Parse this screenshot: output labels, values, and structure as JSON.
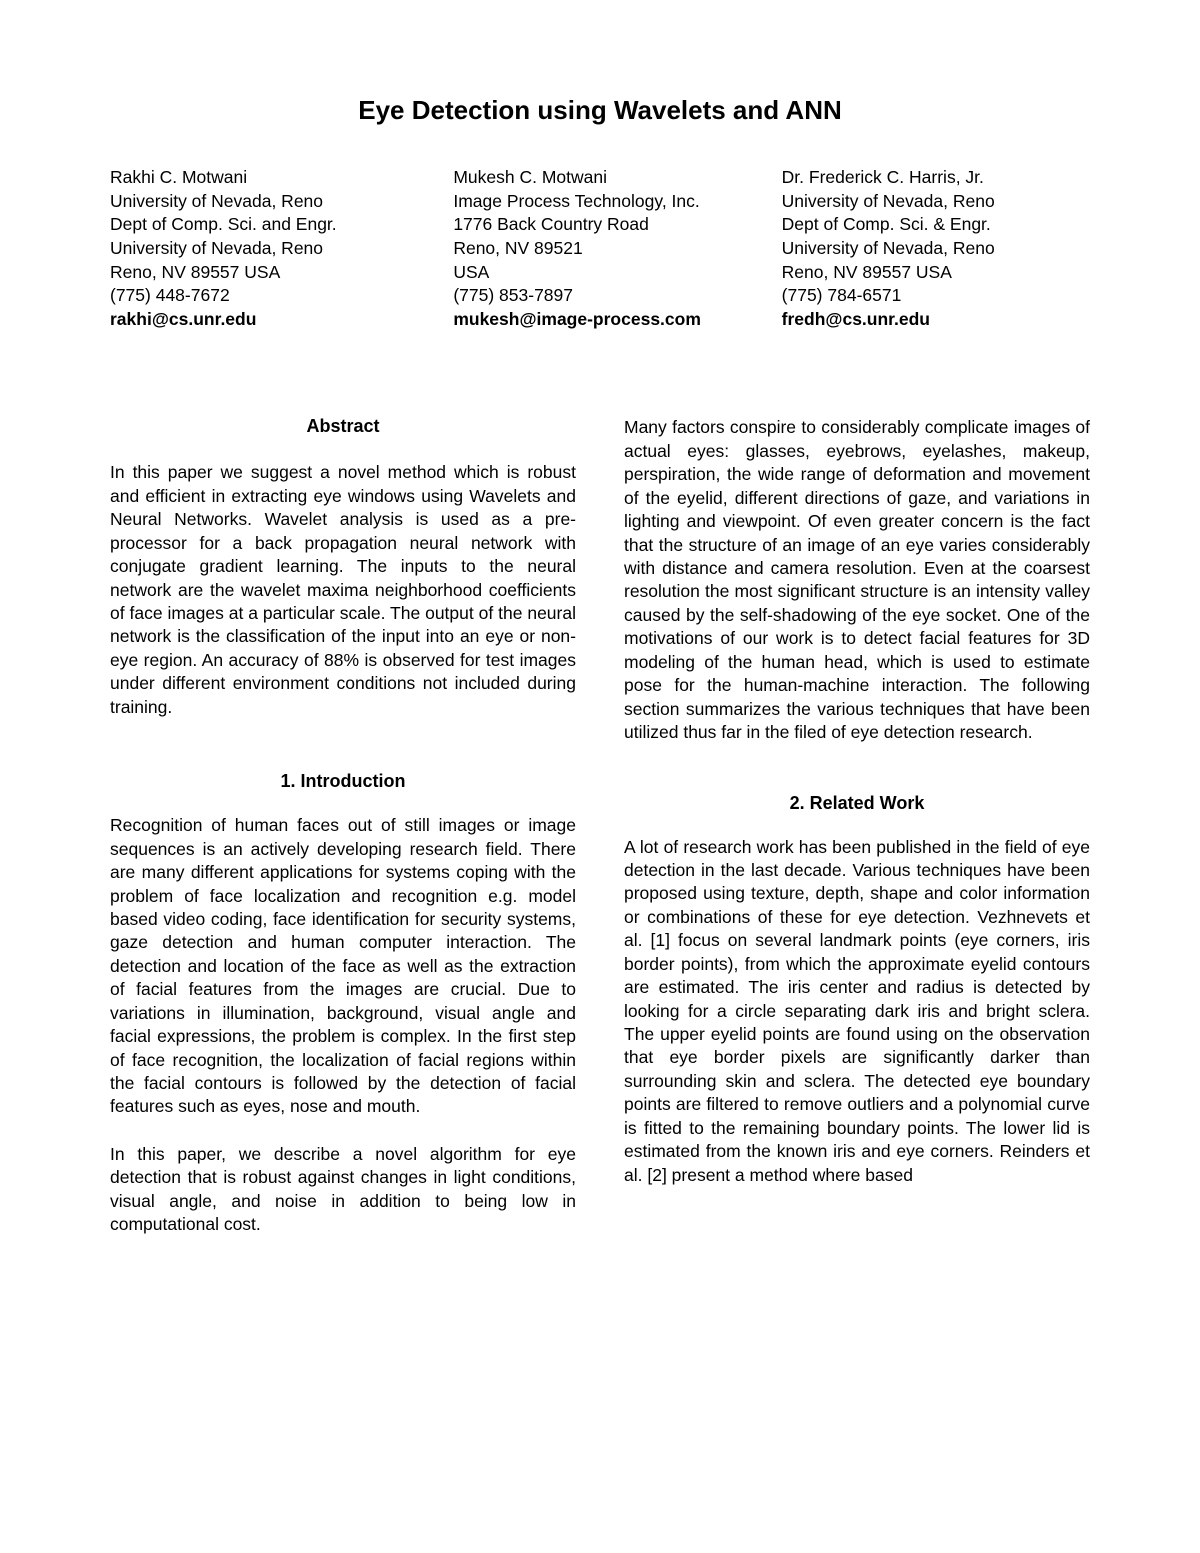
{
  "title": "Eye Detection using Wavelets and ANN",
  "authors": [
    {
      "name": "Rakhi C. Motwani",
      "line1": "University of Nevada, Reno",
      "line2": "Dept of Comp. Sci. and Engr.",
      "line3": "University of Nevada, Reno",
      "line4": "Reno, NV 89557 USA",
      "phone": "(775) 448-7672",
      "email": "rakhi@cs.unr.edu"
    },
    {
      "name": "Mukesh C. Motwani",
      "line1": "Image Process Technology, Inc.",
      "line2": "1776 Back Country Road",
      "line3": "Reno, NV 89521",
      "line4": "USA",
      "phone": "(775) 853-7897",
      "email": "mukesh@image-process.com"
    },
    {
      "name": "Dr. Frederick C. Harris, Jr.",
      "line1": "University of Nevada, Reno",
      "line2": "Dept of Comp. Sci. & Engr.",
      "line3": "University of Nevada, Reno",
      "line4": "Reno, NV 89557 USA",
      "phone": "(775) 784-6571",
      "email": "fredh@cs.unr.edu"
    }
  ],
  "headings": {
    "abstract": "Abstract",
    "introduction": "1. Introduction",
    "related": "2. Related Work"
  },
  "paragraphs": {
    "abstract": "In this paper we suggest a novel method which is robust and efficient in extracting eye windows using Wavelets and Neural Networks. Wavelet analysis is used as a pre-processor for a back propagation neural network with conjugate gradient learning. The inputs to the neural network are the wavelet maxima neighborhood coefficients of face images at a particular scale. The output of the neural network is the classification of the input into an eye or non-eye region. An accuracy of 88% is observed for test images under different environment conditions not included during training.",
    "intro_p1": "Recognition of human faces out of still images or image sequences is an actively developing research field. There are many different applications for systems coping with the problem of face localization and recognition e.g. model based video coding, face identification for security systems, gaze detection and human computer interaction. The detection and location of the face as well as the extraction of facial features from the images are crucial. Due to variations in illumination, background, visual angle and facial expressions, the problem is complex. In the first step of face recognition, the localization of facial regions within the facial contours is followed by the detection of facial features such as eyes, nose and mouth.",
    "intro_p2": "In this paper, we describe a novel algorithm for eye detection that is robust against changes in light conditions, visual angle, and noise in addition to being low in computational cost.",
    "col2_p1": "Many factors conspire to considerably complicate images of actual eyes: glasses, eyebrows, eyelashes, makeup, perspiration, the wide range of deformation and movement of the eyelid, different directions of gaze, and variations in lighting and viewpoint. Of even greater concern is the fact that the structure of an image of an eye varies considerably with distance and camera resolution. Even at the coarsest resolution the most significant structure is an intensity valley caused by the self-shadowing of the eye socket. One of the motivations of our work is to detect facial features for 3D modeling of the human head, which is used to estimate pose for the human-machine interaction. The following section summarizes the various techniques that have been utilized thus far in the filed of eye detection research.",
    "related_p1": "A lot of research work has been published in the field of eye detection in the last decade. Various techniques have been proposed using texture, depth, shape and color information or combinations of these for eye detection. Vezhnevets et al. [1] focus on several landmark points (eye corners, iris border points), from which the approximate eyelid contours are estimated. The iris center and radius is detected by looking for a circle separating dark iris and bright sclera. The upper eyelid points are found using on the observation that eye border pixels are significantly darker than surrounding skin and sclera. The detected eye boundary points are filtered to remove outliers and a polynomial curve is fitted to the remaining boundary points. The lower lid is estimated from the known iris and eye corners. Reinders et al. [2] present a method where based"
  }
}
